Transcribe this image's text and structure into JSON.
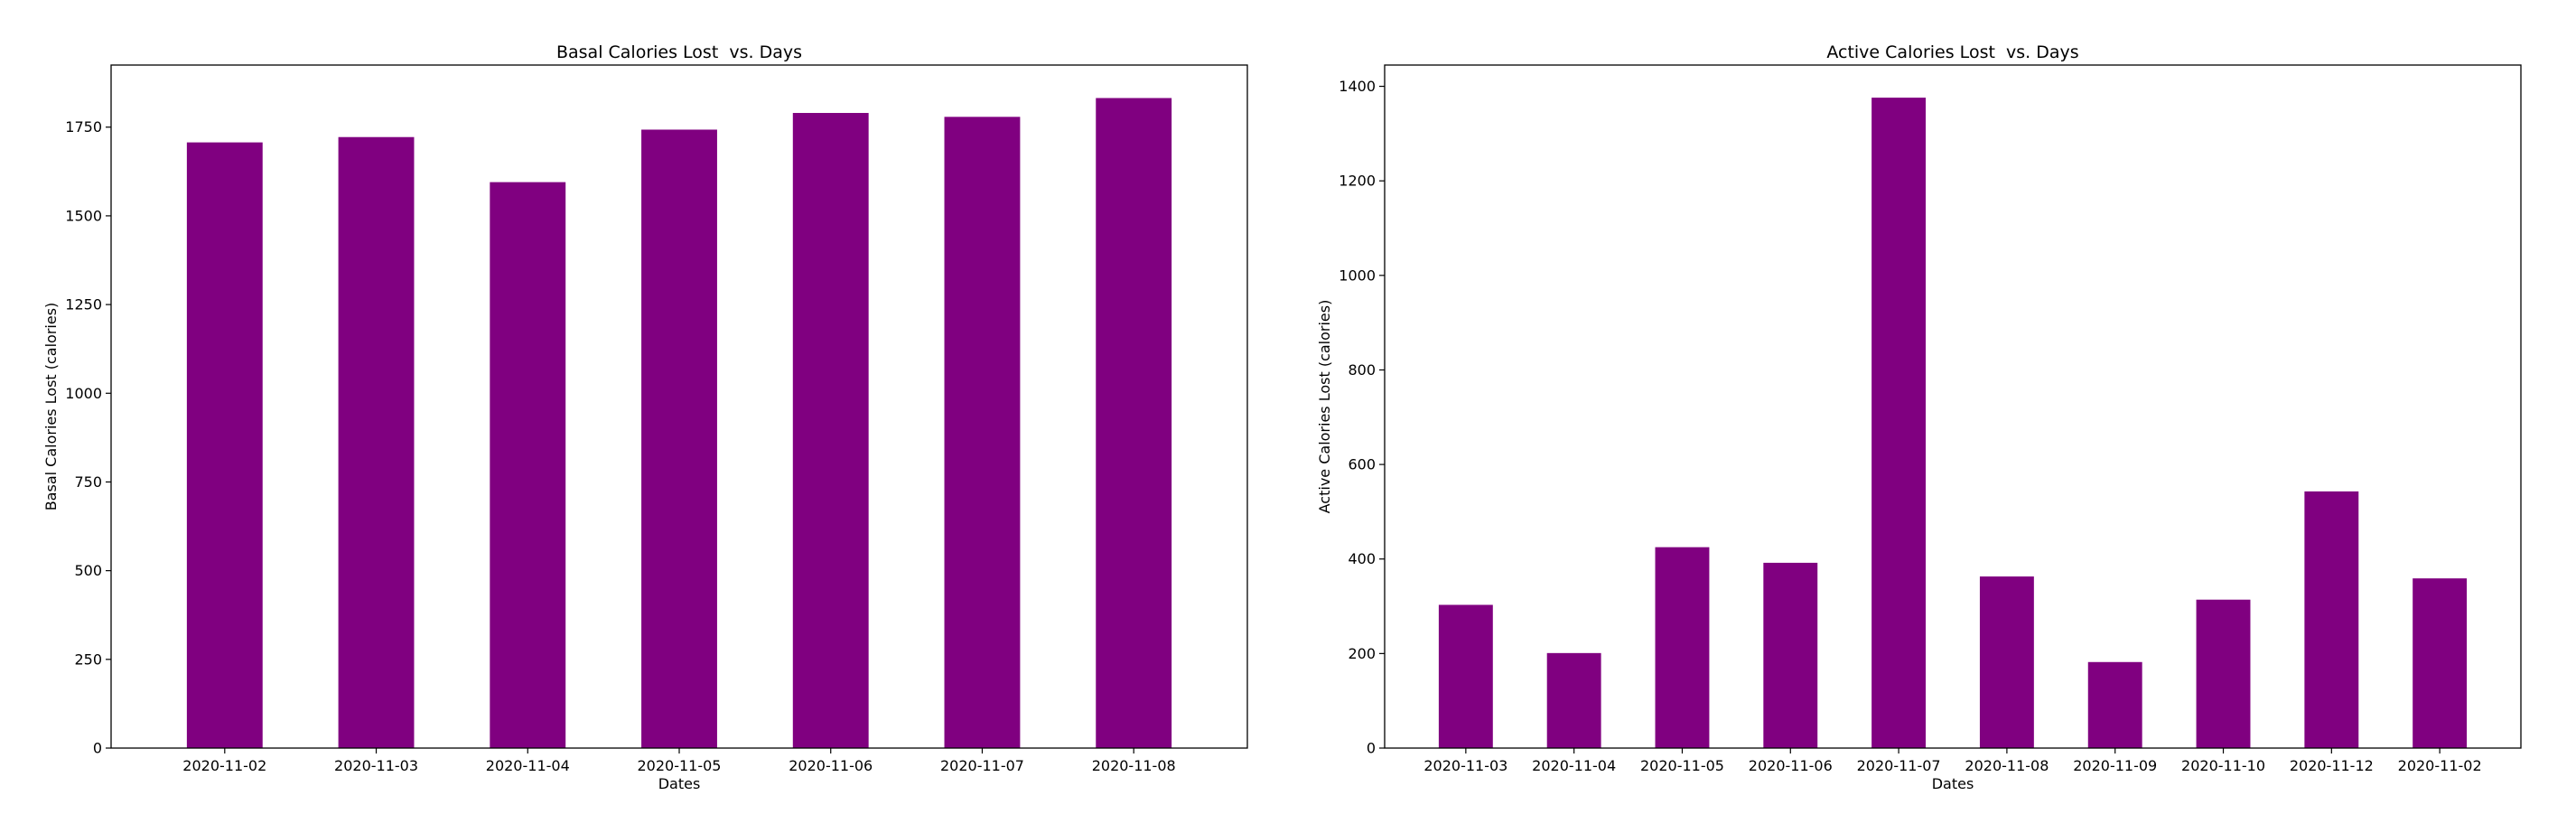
{
  "colors": {
    "bar": "#800080",
    "axis": "#000000",
    "background": "#ffffff"
  },
  "chart_data": [
    {
      "type": "bar",
      "title": "Basal Calories Lost  vs. Days",
      "xlabel": "Dates",
      "ylabel": "Basal Calories Lost (calories)",
      "categories": [
        "2020-11-02",
        "2020-11-03",
        "2020-11-04",
        "2020-11-05",
        "2020-11-06",
        "2020-11-07",
        "2020-11-08"
      ],
      "values": [
        1707,
        1722,
        1595,
        1743,
        1790,
        1779,
        1832
      ],
      "ylim": [
        0,
        1925
      ],
      "yticks": [
        0,
        250,
        500,
        750,
        1000,
        1250,
        1500,
        1750
      ],
      "grid": false,
      "legend": "none"
    },
    {
      "type": "bar",
      "title": "Active Calories Lost  vs. Days",
      "xlabel": "Dates",
      "ylabel": "Active Calories Lost (calories)",
      "categories": [
        "2020-11-03",
        "2020-11-04",
        "2020-11-05",
        "2020-11-06",
        "2020-11-07",
        "2020-11-08",
        "2020-11-09",
        "2020-11-10",
        "2020-11-12",
        "2020-11-02"
      ],
      "values": [
        303,
        201,
        425,
        392,
        1376,
        363,
        182,
        314,
        543,
        359
      ],
      "ylim": [
        0,
        1445
      ],
      "yticks": [
        0,
        200,
        400,
        600,
        800,
        1000,
        1200,
        1400
      ],
      "grid": false,
      "legend": "none"
    }
  ]
}
